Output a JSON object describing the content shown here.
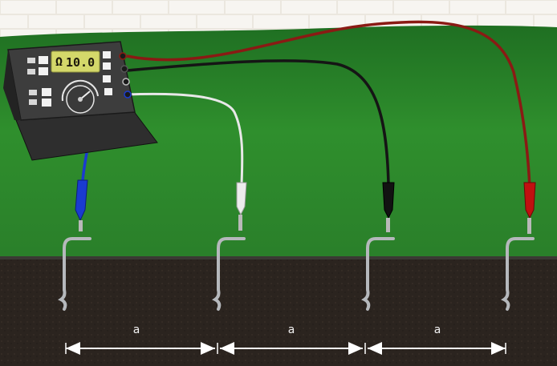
{
  "meter": {
    "display_symbol": "Ω",
    "display_value": "10.0"
  },
  "spacing_labels": [
    "a",
    "a",
    "a"
  ],
  "colors": {
    "lead_blue": "#1a3bd0",
    "lead_white": "#e8e8e8",
    "lead_black": "#121212",
    "lead_red": "#c01010",
    "grass": "#2f8a2a",
    "soil": "#2b241f",
    "display": "#d4d86a"
  }
}
